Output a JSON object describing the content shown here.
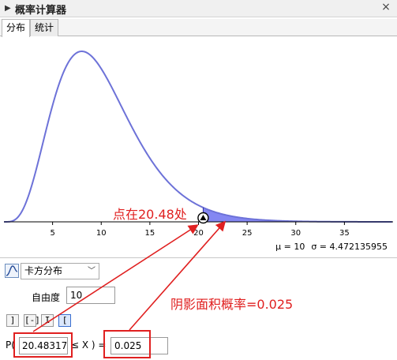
{
  "window": {
    "title": "概率计算器",
    "close_glyph": "×",
    "icons": {
      "collapse": "triangle-right-icon",
      "close": "close-icon"
    }
  },
  "tabs": [
    {
      "label": "分布",
      "active": true
    },
    {
      "label": "统计",
      "active": false
    }
  ],
  "chart_data": {
    "type": "area",
    "distribution": "chi-square",
    "degrees_of_freedom": 10,
    "x_ticks": [
      5,
      10,
      15,
      20,
      25,
      30,
      35
    ],
    "xlim": [
      0,
      40
    ],
    "grid": false,
    "shaded_region": {
      "from": 20.48,
      "to": 40
    },
    "marker_x": 20.48
  },
  "stats": {
    "mu": "μ = 10",
    "sigma": "σ = 4.472135955"
  },
  "controls": {
    "distribution": "卡方分布",
    "dof_label": "自由度",
    "dof_value": "10",
    "mode_buttons": [
      "]",
      "[-]",
      "I",
      "["
    ],
    "mode_button_icons": [
      "left-sided-icon",
      "interval-icon",
      "two-sided-icon",
      "right-sided-icon"
    ],
    "active_mode_index": 3,
    "prob_prefix": "P(",
    "lower_value": "20.483177",
    "prob_mid": "≤ X ) =",
    "result_value": "0.025"
  },
  "annotations": {
    "point": "点在20.48处",
    "shade": "阴影面积概率=0.025",
    "color": "#e02020"
  },
  "colors": {
    "curve": "#6d72d8",
    "shade": "#6f72f0",
    "accent": "#e02020"
  }
}
